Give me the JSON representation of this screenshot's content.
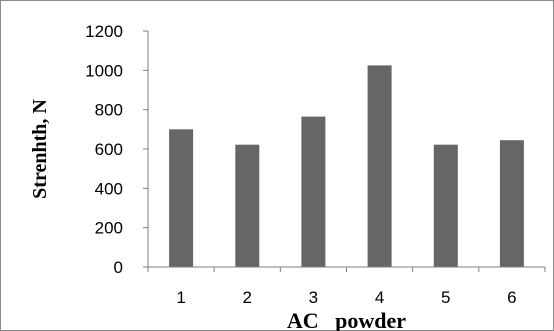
{
  "chart_data": {
    "type": "bar",
    "categories": [
      "1",
      "2",
      "3",
      "4",
      "5",
      "6"
    ],
    "values": [
      700,
      622,
      765,
      1025,
      622,
      645
    ],
    "xlabel": "AC   powder",
    "ylabel": "Strenhth, N",
    "ylim": [
      0,
      1200
    ],
    "yticks": [
      "0",
      "200",
      "400",
      "600",
      "800",
      "1000",
      "1200"
    ],
    "grid": false,
    "legend": "none",
    "bar_color": "#666666"
  }
}
